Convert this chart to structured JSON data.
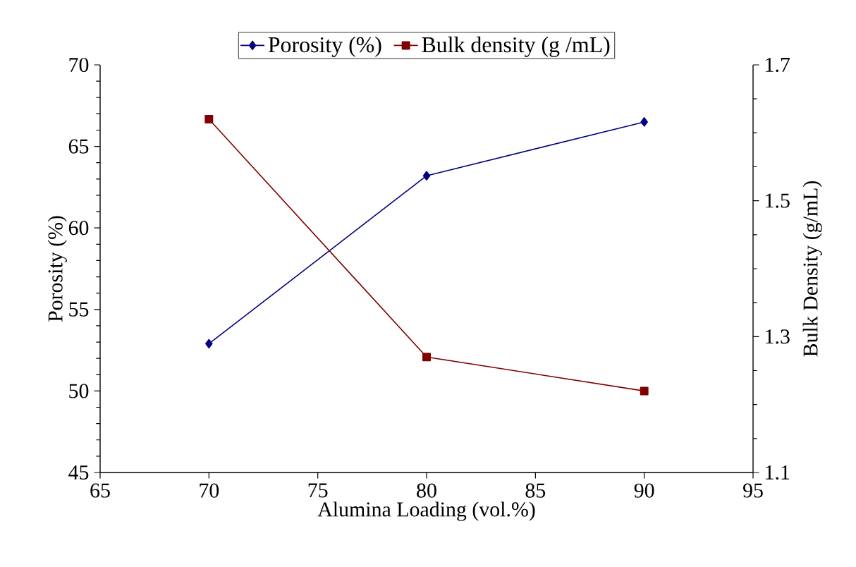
{
  "chart_data": {
    "type": "line",
    "xlabel": "Alumina Loading (vol.%)",
    "ylabel": "Porosity (%)",
    "y2label": "Bulk Density (g/mL)",
    "x": [
      70,
      80,
      90
    ],
    "series": [
      {
        "name": "Porosity (%)",
        "color": "#000080",
        "marker": "diamond",
        "values": [
          52.9,
          63.2,
          66.5
        ]
      },
      {
        "name": "Bulk density (g /mL)",
        "color": "#800000",
        "marker": "square",
        "axis": "y2",
        "values": [
          1.62,
          1.27,
          1.22
        ]
      }
    ],
    "xlim": [
      65,
      95
    ],
    "xticks": [
      65,
      70,
      75,
      80,
      85,
      90,
      95
    ],
    "ylim": [
      45,
      70
    ],
    "yticks": [
      45,
      50,
      55,
      60,
      65,
      70
    ],
    "y2lim": [
      1.1,
      1.7
    ],
    "y2ticks": [
      1.1,
      1.3,
      1.5,
      1.7
    ],
    "legend": "top",
    "grid": false
  }
}
